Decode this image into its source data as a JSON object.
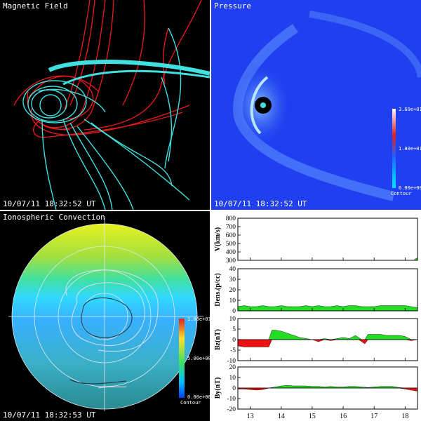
{
  "panels": {
    "magnetic": {
      "title": "Magnetic Field",
      "timestamp": "10/07/11 18:32:52 UT"
    },
    "pressure": {
      "title": "Pressure",
      "timestamp": "10/07/11 18:32:52 UT",
      "colorbar": {
        "max": "3.60e+01",
        "mid": "1.80e+01",
        "min": "0.00e+00",
        "label": "Contour"
      }
    },
    "ionosphere": {
      "title": "Ionospheric Convection",
      "timestamp": "10/07/11 18:32:53 UT",
      "colorbar": {
        "max": "1.00e+01",
        "mid": "5.00e+00",
        "min": "0.00e+00",
        "label": "Contour"
      }
    }
  },
  "chart_data": [
    {
      "type": "line",
      "ylabel": "V(km/s)",
      "ylim": [
        300,
        800
      ],
      "yticks": [
        300,
        400,
        500,
        600,
        700,
        800
      ],
      "xlim": [
        12.6,
        18.4
      ],
      "fill": "green",
      "x": [
        18.3,
        18.4
      ],
      "values": [
        310,
        330
      ]
    },
    {
      "type": "area",
      "ylabel": "Dens.(p/cc)",
      "ylim": [
        0,
        40
      ],
      "yticks": [
        0,
        10,
        20,
        30,
        40
      ],
      "xlim": [
        12.6,
        18.4
      ],
      "fill": "#22dd22",
      "x": [
        12.6,
        12.8,
        13.0,
        13.2,
        13.4,
        13.6,
        13.8,
        14.0,
        14.2,
        14.4,
        14.6,
        14.8,
        15.0,
        15.2,
        15.4,
        15.6,
        15.8,
        16.0,
        16.2,
        16.4,
        16.6,
        16.8,
        17.0,
        17.2,
        17.4,
        17.6,
        17.8,
        18.0,
        18.2,
        18.4
      ],
      "values": [
        4,
        5,
        4,
        4,
        5,
        4,
        4,
        5,
        4,
        4,
        4,
        5,
        4,
        5,
        4,
        4,
        5,
        4,
        5,
        5,
        4,
        4,
        4,
        5,
        5,
        5,
        5,
        5,
        4,
        3
      ]
    },
    {
      "type": "area",
      "ylabel": "Bz(nT)",
      "ylim": [
        -10,
        10
      ],
      "yticks": [
        -10,
        -5,
        0,
        5,
        10
      ],
      "xlim": [
        12.6,
        18.4
      ],
      "fill_positive": "#22dd22",
      "fill_negative": "#ee1111",
      "x": [
        12.6,
        12.8,
        13.0,
        13.2,
        13.4,
        13.6,
        13.7,
        13.8,
        14.0,
        14.2,
        14.4,
        14.6,
        14.8,
        15.0,
        15.2,
        15.4,
        15.6,
        15.8,
        16.0,
        16.2,
        16.4,
        16.5,
        16.6,
        16.7,
        16.8,
        17.0,
        17.2,
        17.4,
        17.6,
        17.8,
        18.0,
        18.2,
        18.4
      ],
      "values": [
        -3,
        -3.5,
        -3.5,
        -3.5,
        -3.5,
        -3.5,
        4.5,
        4.5,
        4,
        3,
        2,
        1,
        0.5,
        0,
        -1,
        0.5,
        -0.5,
        0.5,
        1,
        0.5,
        2,
        1,
        -1,
        -2,
        2.5,
        2.5,
        2.5,
        2,
        2,
        2,
        1.5,
        -0.5,
        0
      ]
    },
    {
      "type": "area",
      "ylabel": "By(nT)",
      "ylim": [
        -20,
        20
      ],
      "yticks": [
        -20,
        -10,
        0,
        10,
        20
      ],
      "xlim": [
        12.6,
        18.4
      ],
      "xticks": [
        13,
        14,
        15,
        16,
        17,
        18
      ],
      "fill_positive": "#22dd22",
      "fill_negative": "#ee1111",
      "x": [
        12.6,
        12.8,
        13.0,
        13.2,
        13.4,
        13.6,
        13.8,
        14.0,
        14.2,
        14.4,
        14.6,
        14.8,
        15.0,
        15.2,
        15.4,
        15.6,
        15.8,
        16.0,
        16.2,
        16.4,
        16.6,
        16.8,
        17.0,
        17.2,
        17.4,
        17.6,
        17.8,
        18.0,
        18.2,
        18.4
      ],
      "values": [
        -1,
        -1,
        -1.5,
        -2,
        -1.5,
        0,
        1,
        2,
        2.5,
        2,
        2,
        2,
        1.5,
        1.5,
        1,
        1.5,
        1,
        1,
        1.5,
        1.5,
        1,
        0.5,
        1,
        1.5,
        1.5,
        1.5,
        0.5,
        -1,
        -2,
        -3
      ]
    }
  ]
}
